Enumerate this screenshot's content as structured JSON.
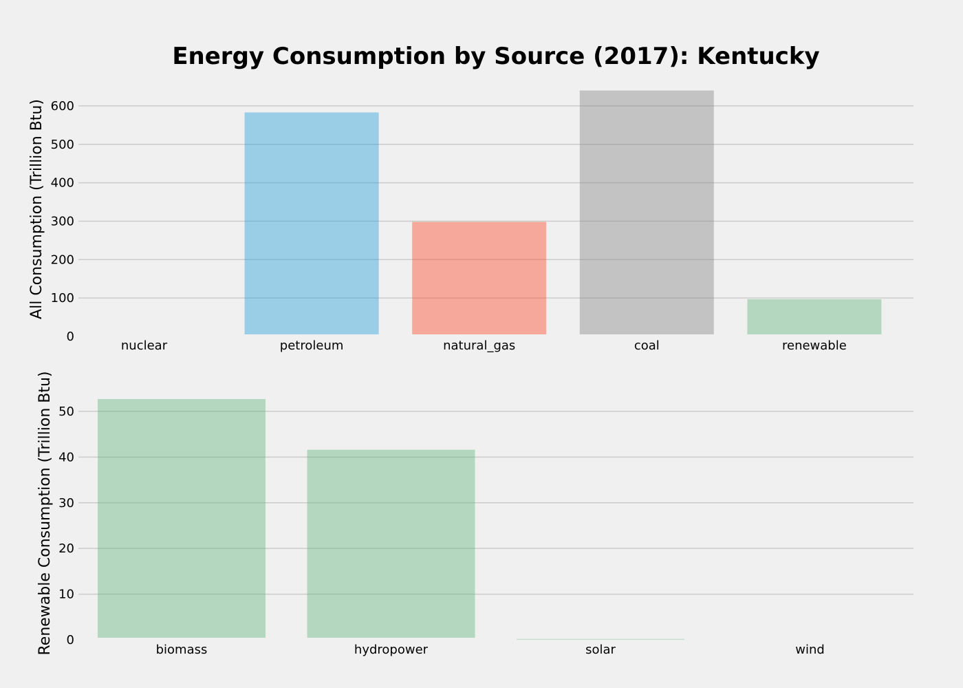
{
  "title": "Energy Consumption by Source (2017): Kentucky",
  "chart_data": [
    {
      "type": "bar",
      "ylabel": "All Consumption (Trillion Btu)",
      "categories": [
        "nuclear",
        "petroleum",
        "natural_gas",
        "coal",
        "renewable"
      ],
      "values": [
        0,
        583,
        298,
        640,
        97
      ],
      "colors": [
        "#30a2da",
        "#30a2da",
        "#fc4f30",
        "#8b8b8b",
        "#6ab786"
      ],
      "ylim": [
        0,
        650
      ],
      "yticks": [
        0,
        100,
        200,
        300,
        400,
        500,
        600
      ],
      "ytick_labels": [
        "0",
        "100",
        "200",
        "300",
        "400",
        "500",
        "600"
      ],
      "grid": true
    },
    {
      "type": "bar",
      "ylabel": "Renewable Consumption (Trillion Btu)",
      "categories": [
        "biomass",
        "hydropower",
        "solar",
        "wind"
      ],
      "values": [
        52.7,
        41.6,
        0.2,
        0
      ],
      "colors": [
        "#6ab786",
        "#6ab786",
        "#6ab786",
        "#6ab786"
      ],
      "ylim": [
        0,
        53
      ],
      "yticks": [
        0,
        10,
        20,
        30,
        40,
        50
      ],
      "ytick_labels": [
        "0",
        "10",
        "20",
        "30",
        "40",
        "50"
      ],
      "grid": true
    }
  ]
}
